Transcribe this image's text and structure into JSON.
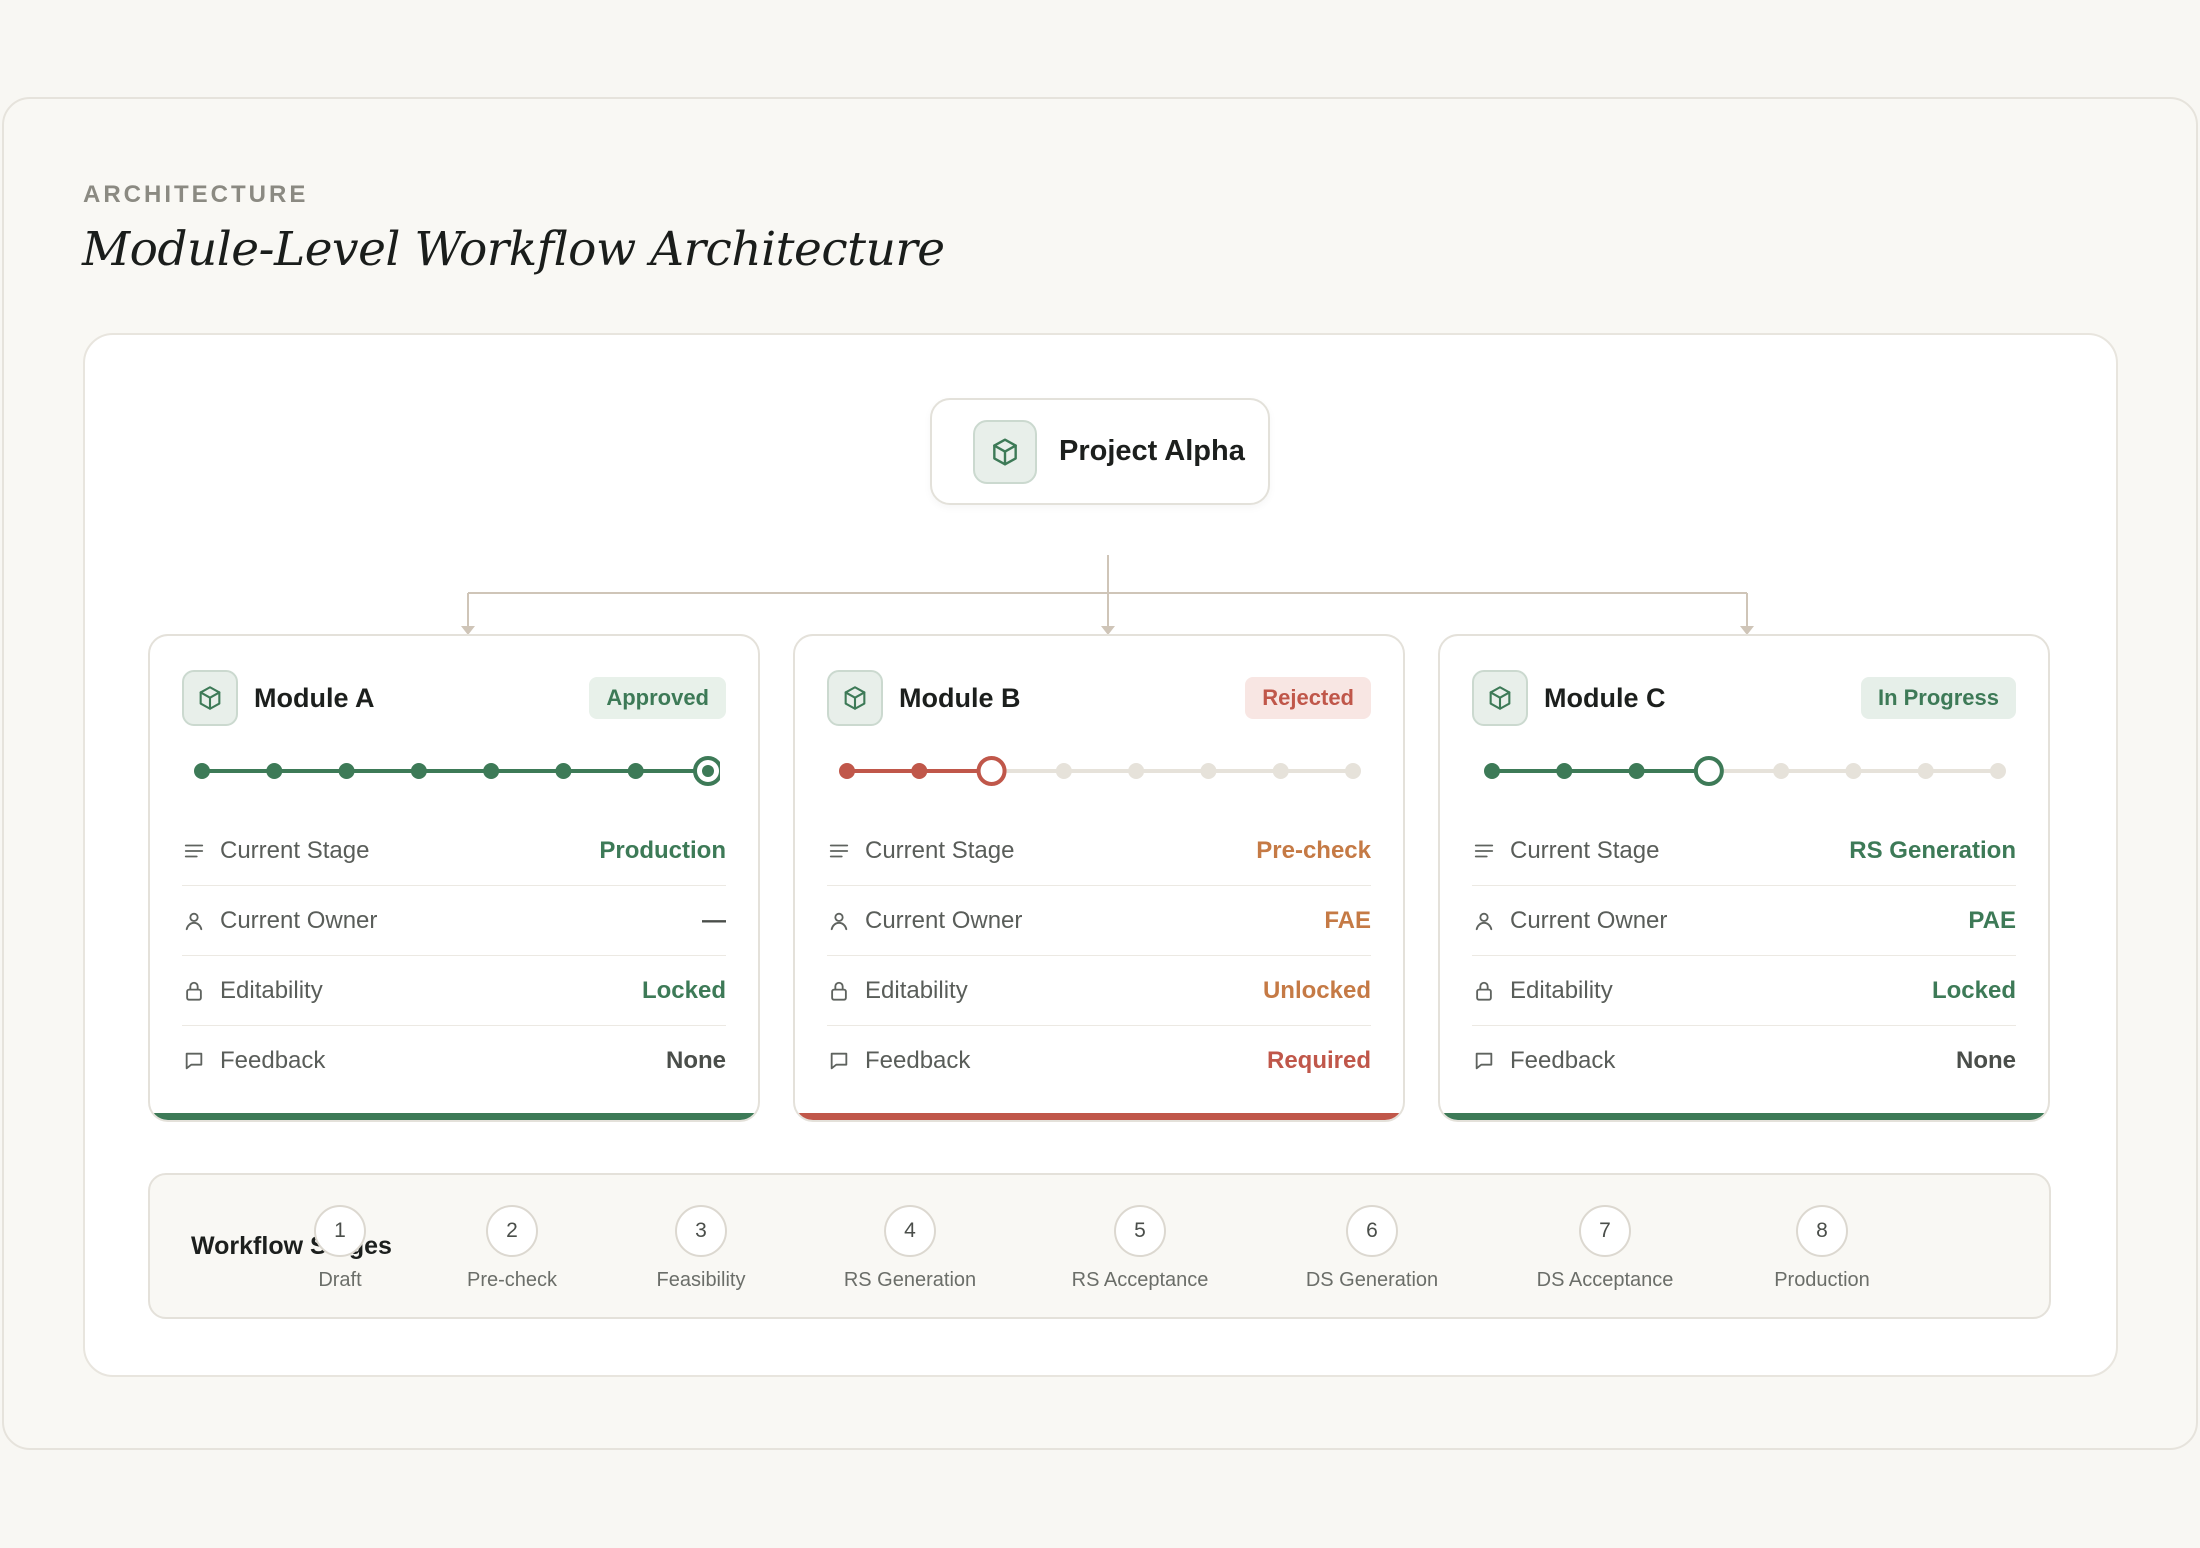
{
  "header": {
    "eyebrow": "ARCHITECTURE",
    "title": "Module-Level Workflow Architecture"
  },
  "root": {
    "label": "Project Alpha",
    "icon": "cube-icon"
  },
  "colors": {
    "green": "#3d7a57",
    "red": "#c0574a",
    "orange": "#c57a45",
    "inactive": "#e6e2da"
  },
  "modules": [
    {
      "name": "Module A",
      "status": "Approved",
      "status_key": "approved",
      "stages_completed": 7,
      "current_stage_index": 8,
      "stage_color": "green",
      "rows": [
        {
          "icon": "lines-icon",
          "label": "Current Stage",
          "value": "Production",
          "color": "#3d7a57"
        },
        {
          "icon": "user-icon",
          "label": "Current Owner",
          "value": "—",
          "color": "#4a4e4a"
        },
        {
          "icon": "lock-icon",
          "label": "Editability",
          "value": "Locked",
          "color": "#3d7a57"
        },
        {
          "icon": "comment-icon",
          "label": "Feedback",
          "value": "None",
          "color": "#4a4e4a"
        }
      ]
    },
    {
      "name": "Module B",
      "status": "Rejected",
      "status_key": "rejected",
      "stages_completed": 2,
      "current_stage_index": 3,
      "stage_color": "red",
      "rows": [
        {
          "icon": "lines-icon",
          "label": "Current Stage",
          "value": "Pre-check",
          "color": "#c57a45"
        },
        {
          "icon": "user-icon",
          "label": "Current Owner",
          "value": "FAE",
          "color": "#c57a45"
        },
        {
          "icon": "lock-icon",
          "label": "Editability",
          "value": "Unlocked",
          "color": "#c57a45"
        },
        {
          "icon": "comment-icon",
          "label": "Feedback",
          "value": "Required",
          "color": "#c0574a"
        }
      ]
    },
    {
      "name": "Module C",
      "status": "In Progress",
      "status_key": "inprogress",
      "stages_completed": 3,
      "current_stage_index": 4,
      "stage_color": "green",
      "rows": [
        {
          "icon": "lines-icon",
          "label": "Current Stage",
          "value": "RS Generation",
          "color": "#3d7a57"
        },
        {
          "icon": "user-icon",
          "label": "Current Owner",
          "value": "PAE",
          "color": "#3d7a57"
        },
        {
          "icon": "lock-icon",
          "label": "Editability",
          "value": "Locked",
          "color": "#3d7a57"
        },
        {
          "icon": "comment-icon",
          "label": "Feedback",
          "value": "None",
          "color": "#4a4e4a"
        }
      ]
    }
  ],
  "legend": {
    "title": "Workflow Stages",
    "stages": [
      {
        "num": "1",
        "label": "Draft"
      },
      {
        "num": "2",
        "label": "Pre-check"
      },
      {
        "num": "3",
        "label": "Feasibility"
      },
      {
        "num": "4",
        "label": "RS Generation"
      },
      {
        "num": "5",
        "label": "RS Acceptance"
      },
      {
        "num": "6",
        "label": "DS Generation"
      },
      {
        "num": "7",
        "label": "DS Acceptance"
      },
      {
        "num": "8",
        "label": "Production"
      }
    ]
  }
}
